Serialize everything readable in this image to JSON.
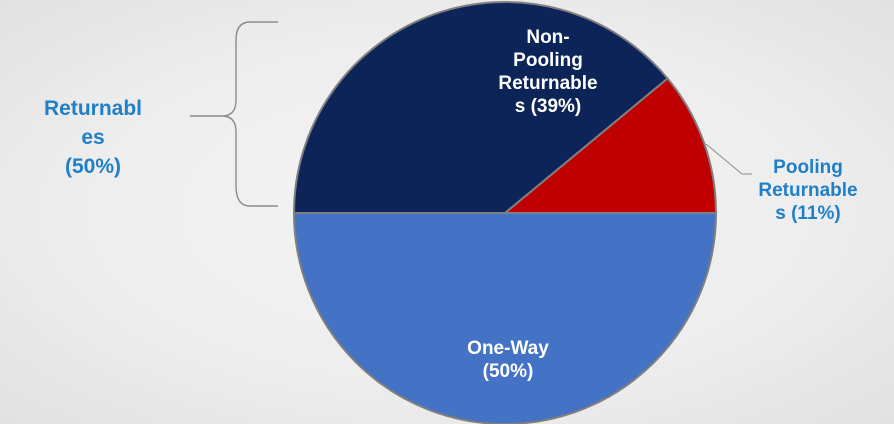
{
  "chart_data": {
    "type": "pie",
    "slices": [
      {
        "name": "Non-Pooling Returnables",
        "value": 39,
        "label_lines": [
          "Non-",
          "Pooling",
          "Returnable",
          "s (39%)"
        ],
        "color": "#0c2458"
      },
      {
        "name": "Pooling Returnables",
        "value": 11,
        "label_lines": [
          "Pooling",
          "Returnable",
          "s (11%)"
        ],
        "color": "#c00000"
      },
      {
        "name": "One-Way",
        "value": 50,
        "label_lines": [
          "One-Way",
          "(50%)"
        ],
        "color": "#4472c4"
      }
    ],
    "group_label": {
      "lines": [
        "Returnabl",
        "es",
        "(50%)"
      ],
      "members": [
        "Non-Pooling Returnables",
        "Pooling Returnables"
      ]
    },
    "label_colors": {
      "inside": "#ffffff",
      "outside": "#1f7fc9"
    },
    "outline_color": "#7f7f7f",
    "start_angle_deg": 180,
    "direction": "clockwise"
  }
}
